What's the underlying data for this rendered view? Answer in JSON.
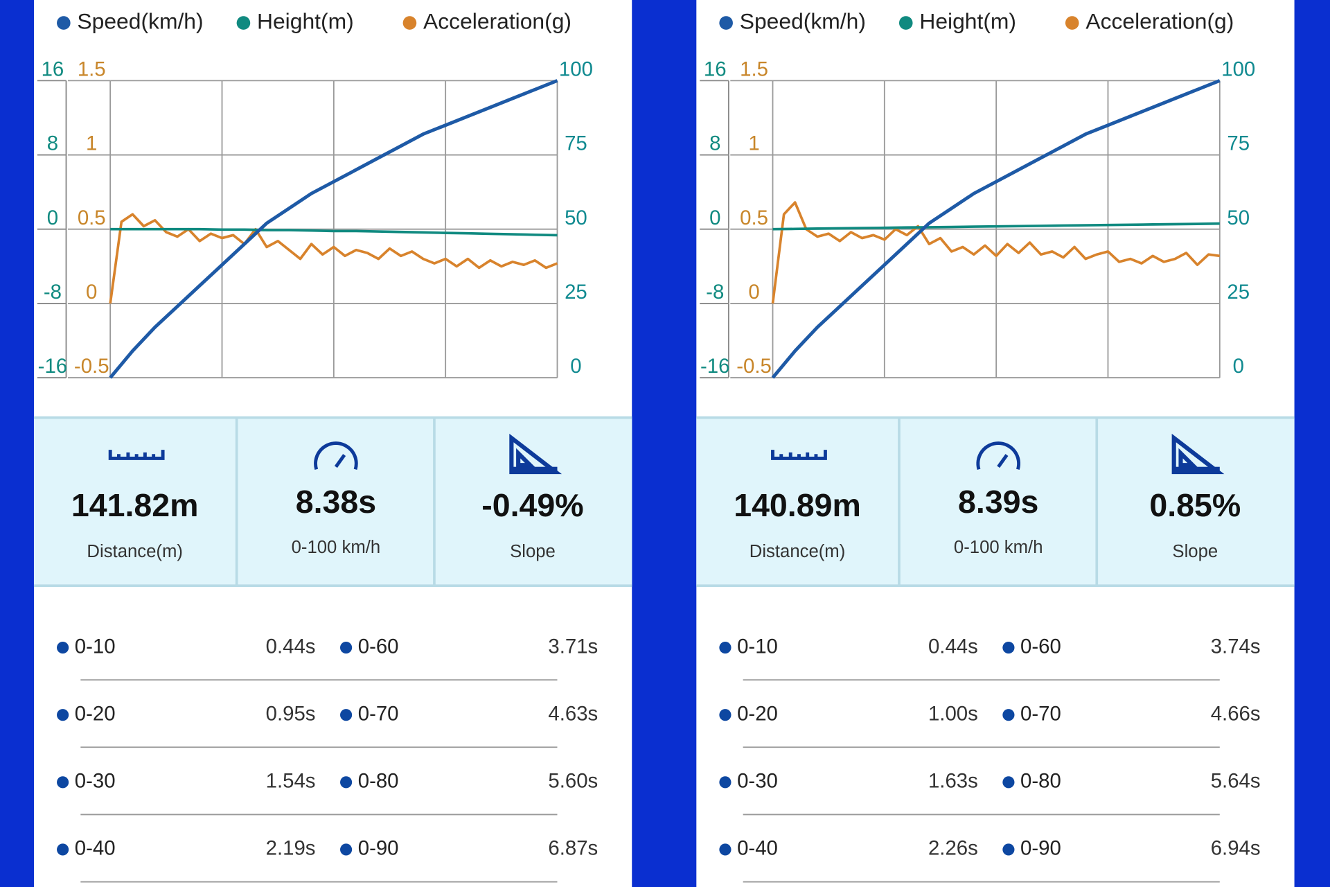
{
  "chart_data": [
    {
      "type": "line",
      "ylim": [
        -16,
        16
      ],
      "yticks": [
        -16,
        -8,
        0,
        8,
        16
      ],
      "y2lim": [
        0,
        100
      ],
      "y2ticks": [
        0,
        25,
        50,
        75,
        100
      ],
      "y3lim": [
        -0.5,
        1.5
      ],
      "y3ticks": [
        -0.5,
        0,
        0.5,
        1,
        1.5
      ],
      "grid": true,
      "series": [
        {
          "name": "Speed(km/h)",
          "color": "#1e5aa6",
          "axis": "y2",
          "values": [
            0,
            9,
            17,
            24,
            31,
            38,
            45,
            52,
            57,
            62,
            66,
            70,
            74,
            78,
            82,
            85,
            88,
            91,
            94,
            97,
            100
          ]
        },
        {
          "name": "Height(m)",
          "color": "#108a80",
          "axis": "y",
          "values": [
            0,
            0,
            0,
            0,
            0,
            -0.05,
            -0.05,
            -0.1,
            -0.1,
            -0.15,
            -0.2,
            -0.2,
            -0.25,
            -0.3,
            -0.35,
            -0.4,
            -0.45,
            -0.5,
            -0.55,
            -0.6,
            -0.65
          ]
        },
        {
          "name": "Acceleration(g)",
          "color": "#d8832c",
          "axis": "y3",
          "values": [
            0.0,
            0.55,
            0.6,
            0.52,
            0.56,
            0.48,
            0.45,
            0.5,
            0.42,
            0.47,
            0.44,
            0.46,
            0.4,
            0.5,
            0.38,
            0.42,
            0.36,
            0.3,
            0.4,
            0.33,
            0.38,
            0.32,
            0.36,
            0.34,
            0.3,
            0.37,
            0.32,
            0.35,
            0.3,
            0.27,
            0.3,
            0.25,
            0.3,
            0.24,
            0.29,
            0.25,
            0.28,
            0.26,
            0.29,
            0.24,
            0.27
          ]
        }
      ]
    },
    {
      "type": "line",
      "ylim": [
        -16,
        16
      ],
      "yticks": [
        -16,
        -8,
        0,
        8,
        16
      ],
      "y2lim": [
        0,
        100
      ],
      "y2ticks": [
        0,
        25,
        50,
        75,
        100
      ],
      "y3lim": [
        -0.5,
        1.5
      ],
      "y3ticks": [
        -0.5,
        0,
        0.5,
        1,
        1.5
      ],
      "grid": true,
      "series": [
        {
          "name": "Speed(km/h)",
          "color": "#1e5aa6",
          "axis": "y2",
          "values": [
            0,
            9,
            17,
            24,
            31,
            38,
            45,
            52,
            57,
            62,
            66,
            70,
            74,
            78,
            82,
            85,
            88,
            91,
            94,
            97,
            100
          ]
        },
        {
          "name": "Height(m)",
          "color": "#108a80",
          "axis": "y",
          "values": [
            0,
            0.03,
            0.06,
            0.09,
            0.12,
            0.15,
            0.18,
            0.21,
            0.24,
            0.27,
            0.3,
            0.33,
            0.36,
            0.39,
            0.42,
            0.45,
            0.48,
            0.51,
            0.54,
            0.57,
            0.6
          ]
        },
        {
          "name": "Acceleration(g)",
          "color": "#d8832c",
          "axis": "y3",
          "values": [
            0.0,
            0.6,
            0.68,
            0.5,
            0.45,
            0.47,
            0.42,
            0.48,
            0.44,
            0.46,
            0.43,
            0.5,
            0.46,
            0.52,
            0.4,
            0.44,
            0.35,
            0.38,
            0.33,
            0.39,
            0.32,
            0.4,
            0.34,
            0.41,
            0.33,
            0.35,
            0.31,
            0.38,
            0.3,
            0.33,
            0.35,
            0.28,
            0.3,
            0.27,
            0.32,
            0.28,
            0.3,
            0.34,
            0.26,
            0.33,
            0.32
          ]
        }
      ]
    }
  ],
  "panels": [
    {
      "stats": [
        {
          "value": "141.82m",
          "label": "Distance(m)"
        },
        {
          "value": "8.38s",
          "label": "0-100 km/h"
        },
        {
          "value": "-0.49%",
          "label": "Slope"
        }
      ],
      "splits": [
        [
          "0-10",
          "0.44s",
          "0-60",
          "3.71s"
        ],
        [
          "0-20",
          "0.95s",
          "0-70",
          "4.63s"
        ],
        [
          "0-30",
          "1.54s",
          "0-80",
          "5.60s"
        ],
        [
          "0-40",
          "2.19s",
          "0-90",
          "6.87s"
        ]
      ]
    },
    {
      "stats": [
        {
          "value": "140.89m",
          "label": "Distance(m)"
        },
        {
          "value": "8.39s",
          "label": "0-100 km/h"
        },
        {
          "value": "0.85%",
          "label": "Slope"
        }
      ],
      "splits": [
        [
          "0-10",
          "0.44s",
          "0-60",
          "3.74s"
        ],
        [
          "0-20",
          "1.00s",
          "0-70",
          "4.66s"
        ],
        [
          "0-30",
          "1.63s",
          "0-80",
          "5.64s"
        ],
        [
          "0-40",
          "2.26s",
          "0-90",
          "6.94s"
        ]
      ]
    }
  ]
}
